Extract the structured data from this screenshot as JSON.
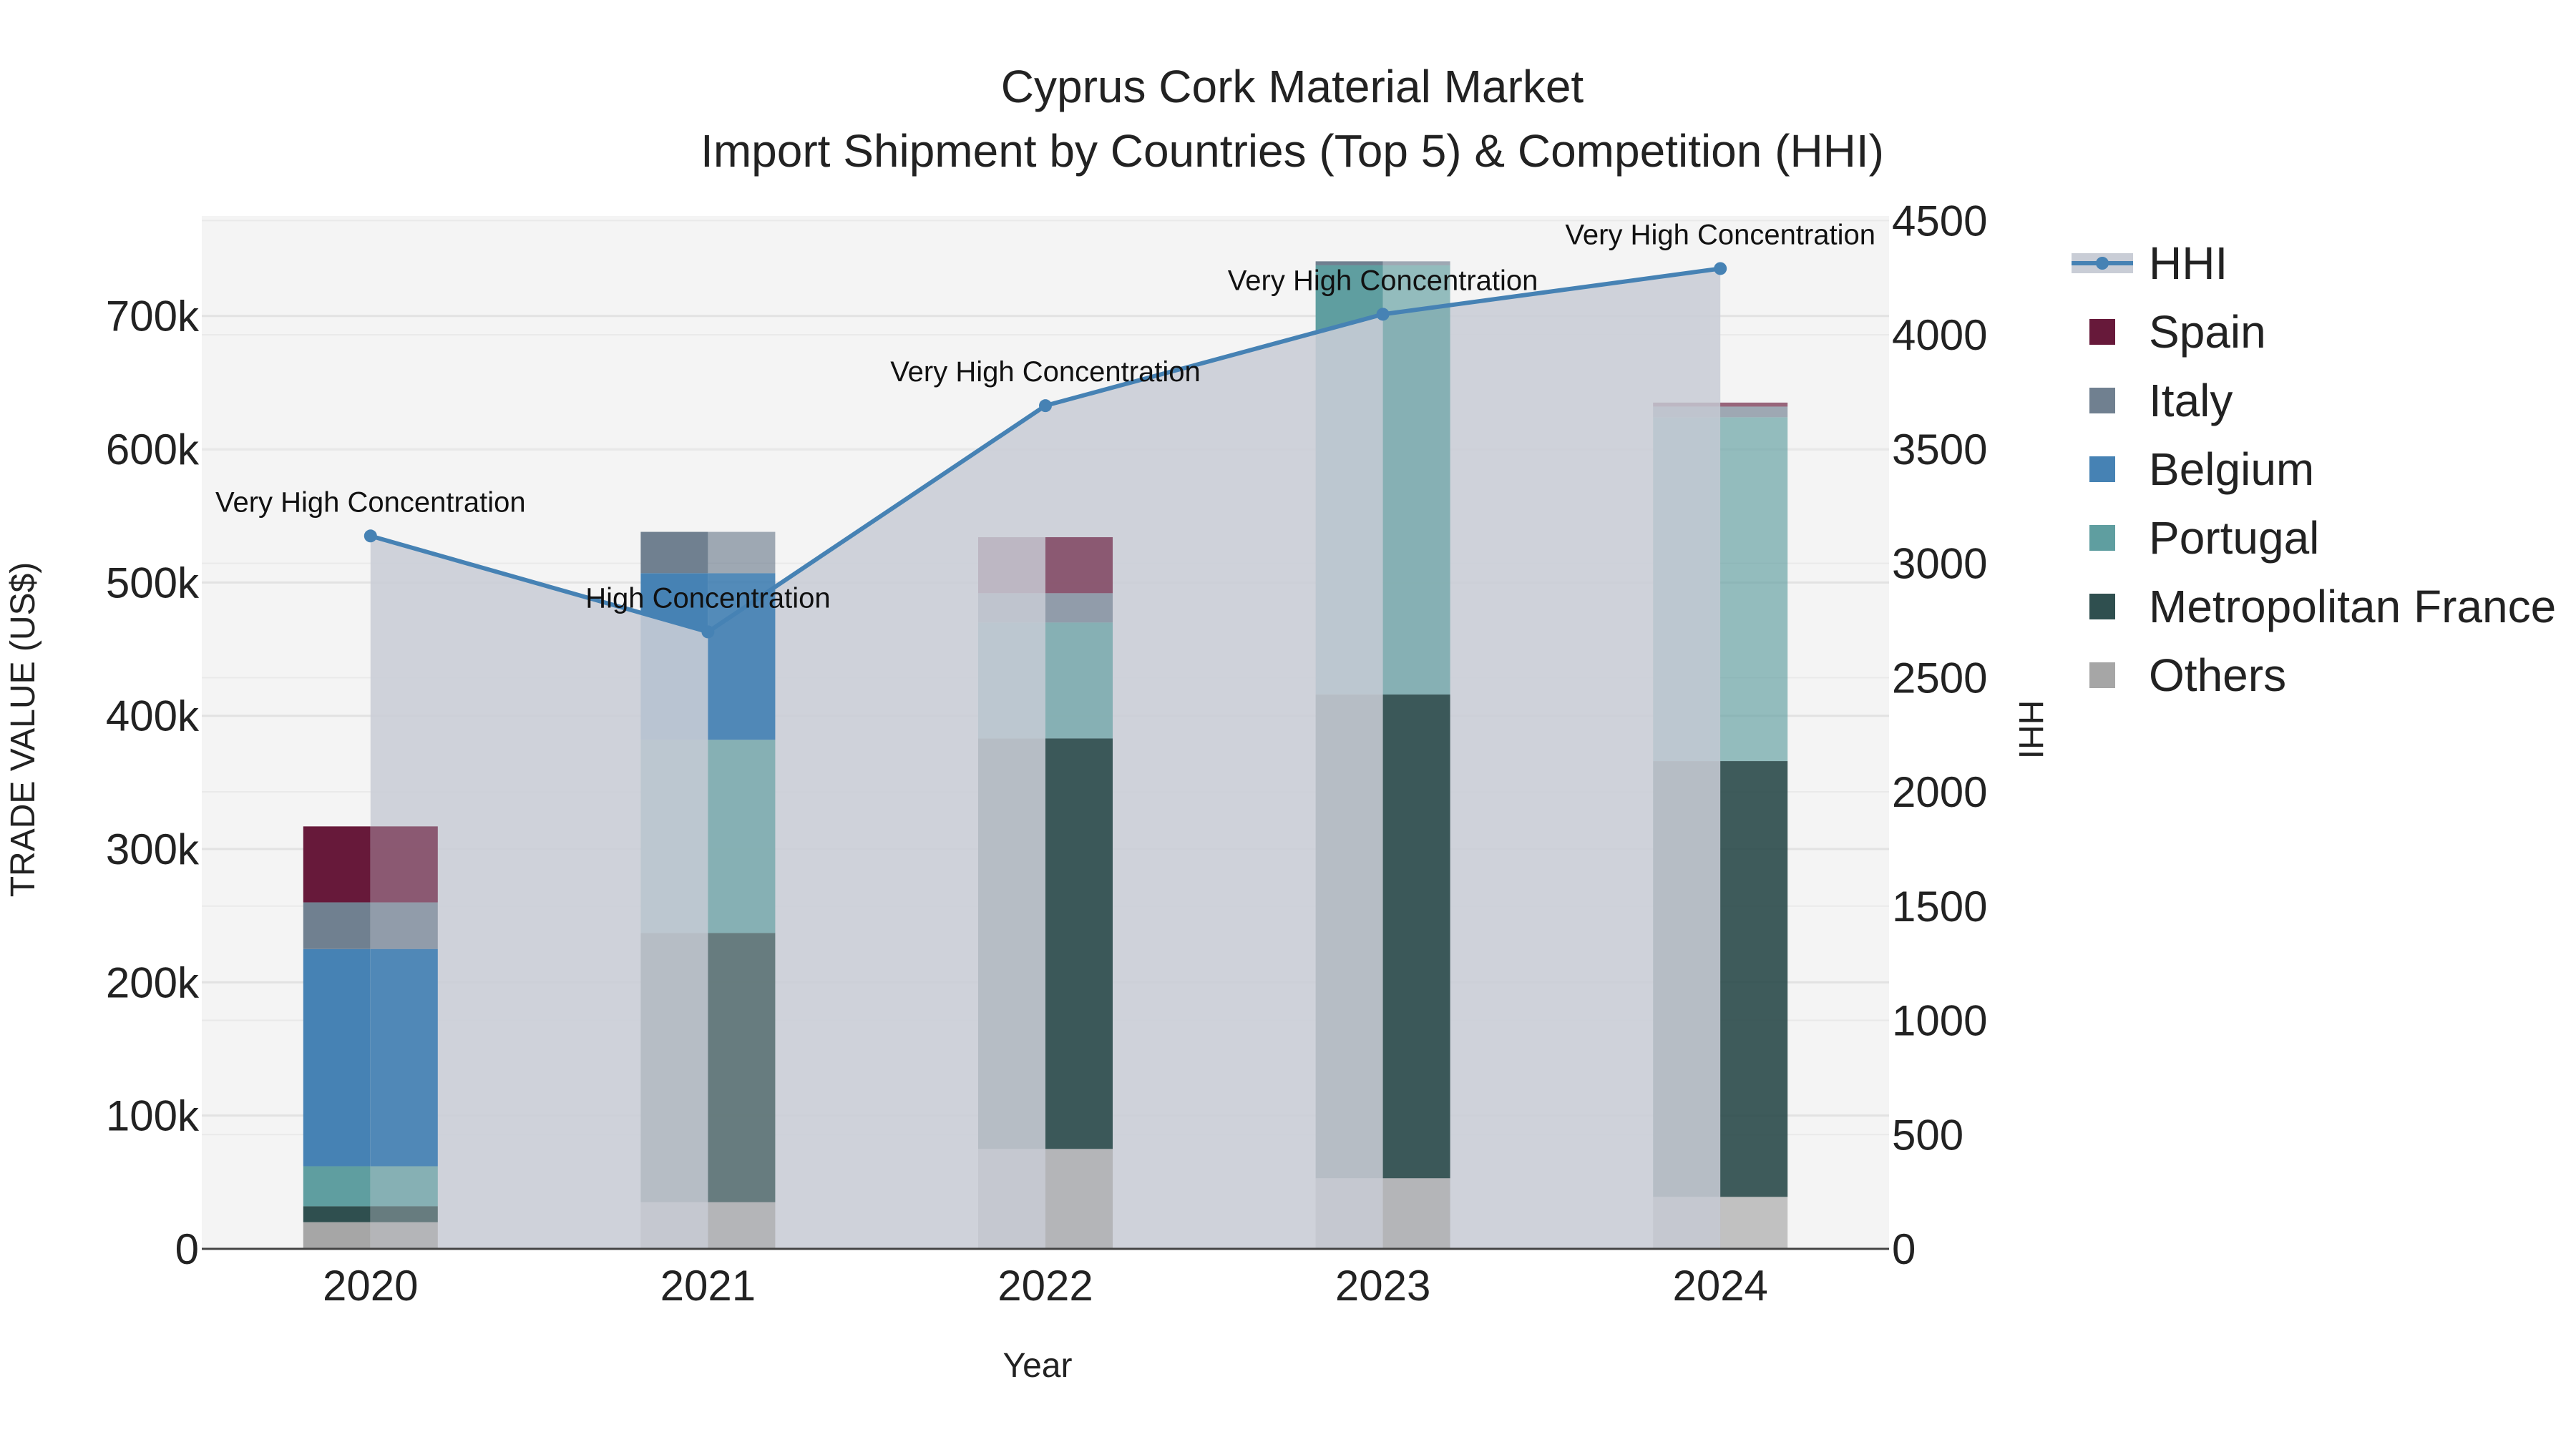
{
  "chart_data": {
    "type": "bar",
    "stacked": true,
    "title": "Cyprus Cork Material Market",
    "subtitle": "Import Shipment by Countries (Top 5) & Competition (HHI)",
    "xlabel": "Year",
    "ylabel": "TRADE VALUE (US$)",
    "y2label": "HHI",
    "categories": [
      "2020",
      "2021",
      "2022",
      "2023",
      "2024"
    ],
    "ylim": [
      0,
      775000
    ],
    "y_ticks": [
      0,
      100000,
      200000,
      300000,
      400000,
      500000,
      600000,
      700000
    ],
    "y_tick_labels": [
      "0",
      "100k",
      "200k",
      "300k",
      "400k",
      "500k",
      "600k",
      "700k"
    ],
    "y2lim": [
      0,
      4520
    ],
    "y2_ticks": [
      0,
      500,
      1000,
      1500,
      2000,
      2500,
      3000,
      3500,
      4000,
      4500
    ],
    "y2_tick_labels": [
      "0",
      "500",
      "1000",
      "1500",
      "2000",
      "2500",
      "3000",
      "3500",
      "4000",
      "4500"
    ],
    "series": [
      {
        "name": "Others",
        "color": "#a6a6a6",
        "values": [
          20000,
          35000,
          75000,
          53000,
          39000
        ]
      },
      {
        "name": "Metropolitan France",
        "color": "#2f4f4f",
        "values": [
          12000,
          202000,
          308000,
          363000,
          327000
        ]
      },
      {
        "name": "Portugal",
        "color": "#5f9ea0",
        "values": [
          30000,
          145000,
          87000,
          322000,
          258000
        ]
      },
      {
        "name": "Belgium",
        "color": "#4682b4",
        "values": [
          163000,
          125000,
          0,
          0,
          0
        ]
      },
      {
        "name": "Italy",
        "color": "#708090",
        "values": [
          35000,
          31000,
          22000,
          3000,
          8000
        ]
      },
      {
        "name": "Spain",
        "color": "#67193a",
        "values": [
          57000,
          0,
          42000,
          0,
          3000
        ]
      }
    ],
    "highlight_segment": [
      {
        "category": "2020",
        "series": "Belgium"
      },
      {
        "category": "2021",
        "series": "Belgium"
      },
      {
        "category": "2022",
        "series": "Metropolitan France"
      },
      {
        "category": "2023",
        "series": "Metropolitan France"
      },
      {
        "category": "2024",
        "series": "Metropolitan France"
      }
    ],
    "hhi": {
      "name": "HHI",
      "color": "#4682b4",
      "area_color": "#c9cdd6",
      "values": [
        3120,
        2700,
        3690,
        4090,
        4290
      ],
      "labels": [
        "Very High Concentration",
        "High Concentration",
        "Very High Concentration",
        "Very High Concentration",
        "Very High Concentration"
      ]
    },
    "legend": [
      "HHI",
      "Spain",
      "Italy",
      "Belgium",
      "Portugal",
      "Metropolitan France",
      "Others"
    ],
    "legend_position": "right"
  }
}
